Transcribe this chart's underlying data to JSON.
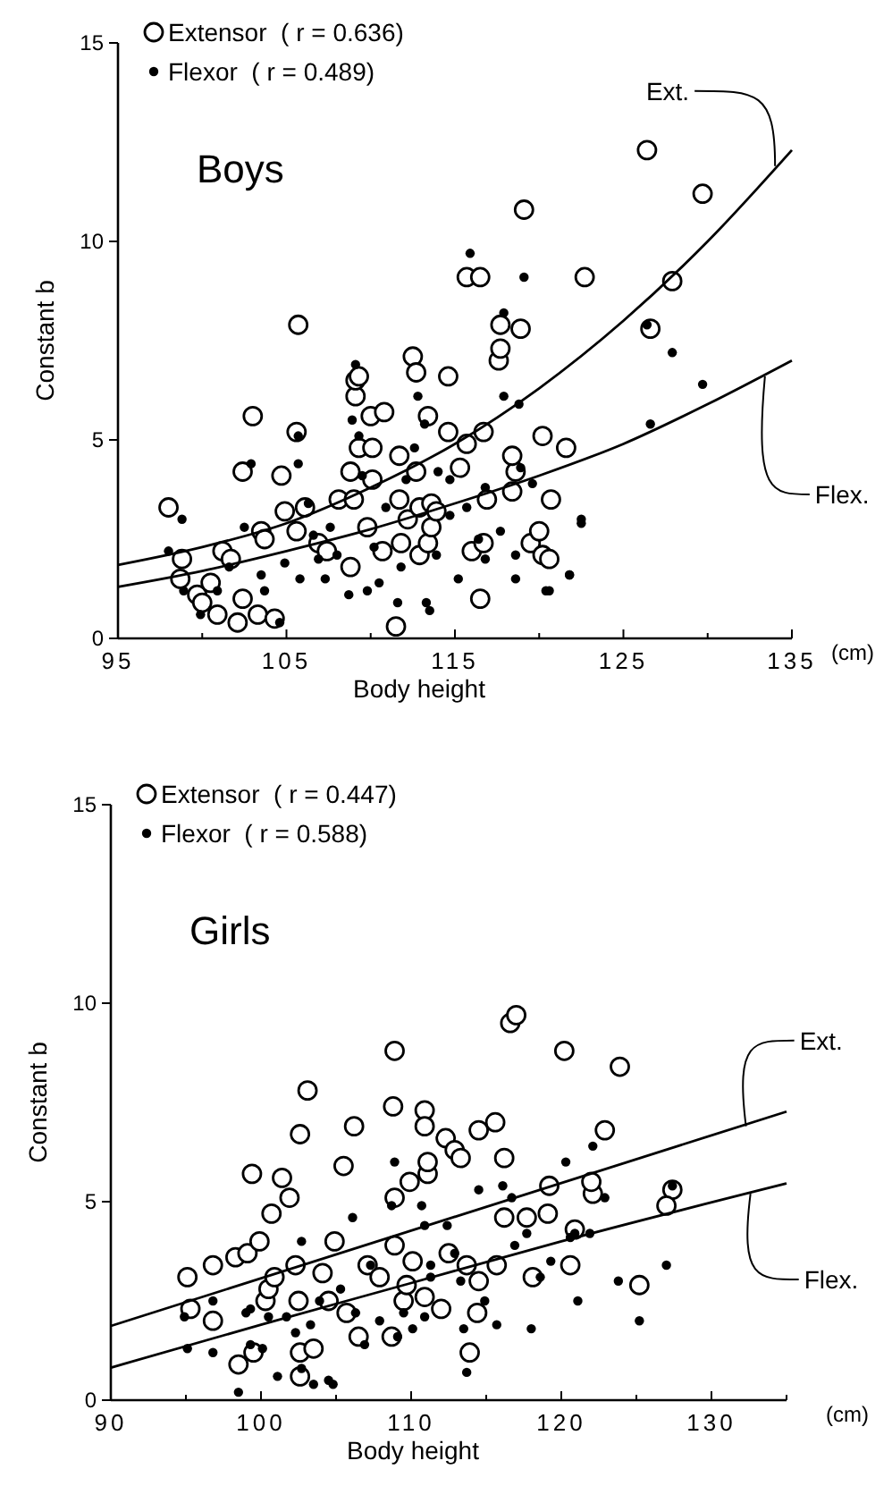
{
  "chart_data": [
    {
      "type": "scatter",
      "title": "Boys",
      "xlabel": "Body height",
      "ylabel": "Constant b",
      "xlim": [
        95,
        135
      ],
      "ylim": [
        0,
        15
      ],
      "xticks": [
        95,
        {
          "value": 100,
          "label": null
        },
        105,
        {
          "value": 110,
          "label": null
        },
        115,
        {
          "value": 120,
          "label": null
        },
        125,
        {
          "value": 130,
          "label": null
        },
        135
      ],
      "yticks": [
        0,
        5,
        10,
        15
      ],
      "legend": "top left",
      "grid": false,
      "annotations": [
        "(cm)",
        {
          "text": "Ext.",
          "x": 134,
          "y": 11.9
        },
        {
          "text": "Flex.",
          "x": 133.4,
          "y": 6.6
        }
      ],
      "series": [
        {
          "name": "Extensor  ( r = 0.636)",
          "type": "scatter",
          "marker": "circle",
          "color": "#ffffff",
          "x": [
            98,
            98.8,
            98.7,
            99.7,
            100,
            100.5,
            100.9,
            101.2,
            101.7,
            102.1,
            102.4,
            102.4,
            103,
            103.3,
            103.5,
            103.7,
            104.3,
            104.7,
            104.9,
            105.6,
            105.6,
            106.1,
            105.7,
            106.9,
            107.4,
            108.1,
            108.8,
            109,
            109.1,
            109.1,
            109.3,
            109.3,
            108.8,
            109.8,
            110,
            110.1,
            110.1,
            110.7,
            110.8,
            111.5,
            111.7,
            111.7,
            111.8,
            112.2,
            112.5,
            112.7,
            112.7,
            112.9,
            112.9,
            113.4,
            113.4,
            113.6,
            113.6,
            113.9,
            114.6,
            114.6,
            115.3,
            115.7,
            116,
            116.5,
            116.7,
            116.9,
            116.7,
            117.6,
            117.7,
            117.7,
            118.9,
            118.4,
            118.6,
            118.4,
            119.5,
            120,
            120.2,
            120.7,
            120.2,
            121.6,
            115.7,
            116.5,
            119.1,
            122.7,
            126.4,
            129.7,
            127.9,
            126.6,
            120.6
          ],
          "values": [
            3.3,
            2,
            1.5,
            1.1,
            0.9,
            1.4,
            0.6,
            2.2,
            2,
            0.4,
            1,
            4.2,
            5.6,
            0.6,
            2.7,
            2.5,
            0.5,
            4.1,
            3.2,
            5.2,
            2.7,
            3.3,
            7.9,
            2.4,
            2.2,
            3.5,
            4.2,
            3.5,
            6.1,
            6.5,
            4.8,
            6.6,
            1.8,
            2.8,
            5.6,
            4.8,
            4,
            2.2,
            5.7,
            0.3,
            3.5,
            4.6,
            2.4,
            3,
            7.1,
            6.7,
            4.2,
            3.3,
            2.1,
            5.6,
            2.4,
            3.4,
            2.8,
            3.2,
            6.6,
            5.2,
            4.3,
            4.9,
            2.2,
            1,
            2.4,
            3.5,
            5.2,
            7,
            7.3,
            7.9,
            7.8,
            3.7,
            4.2,
            4.6,
            2.4,
            2.7,
            2.1,
            3.5,
            5.1,
            4.8,
            9.1,
            9.1,
            10.8,
            9.1,
            12.3,
            11.2,
            9,
            7.8,
            2
          ]
        },
        {
          "name": "Flexor  ( r = 0.489)",
          "type": "scatter",
          "marker": "circle",
          "color": "#000000",
          "x": [
            98,
            98.8,
            98.9,
            99.9,
            100.9,
            101.6,
            102.5,
            102.9,
            103.5,
            103.7,
            104.6,
            104.9,
            105.7,
            105.7,
            105.8,
            106.3,
            106.6,
            106.9,
            107.3,
            107.6,
            108,
            108.7,
            108.9,
            109.1,
            109.3,
            109.5,
            109.8,
            110.2,
            110.5,
            110.9,
            111.6,
            111.8,
            112.1,
            112.6,
            112.8,
            113.2,
            113.3,
            113.5,
            113.9,
            114,
            114.7,
            114.7,
            115.2,
            115.7,
            116.4,
            116.8,
            116.8,
            117.7,
            117.9,
            118.6,
            118.6,
            118.8,
            118.9,
            119.6,
            120.4,
            121.8,
            122.5,
            115.9,
            119.1,
            117.9,
            126.4,
            127.9,
            129.7,
            126.6,
            122.5,
            121.8,
            120.6
          ],
          "values": [
            2.2,
            3,
            1.2,
            0.6,
            1.2,
            1.8,
            2.8,
            4.4,
            1.6,
            1.2,
            0.4,
            1.9,
            4.4,
            5.1,
            1.5,
            3.4,
            2.6,
            2,
            1.5,
            2.8,
            2.1,
            1.1,
            5.5,
            6.9,
            5.1,
            4.1,
            1.2,
            2.3,
            1.4,
            3.3,
            0.9,
            1.8,
            4,
            4.8,
            6.1,
            5.4,
            0.9,
            0.7,
            2.1,
            4.2,
            3.1,
            4,
            1.5,
            3.3,
            2.5,
            2,
            3.8,
            2.7,
            6.1,
            2.1,
            1.5,
            5.9,
            4.3,
            3.9,
            1.2,
            1.6,
            3,
            9.7,
            9.1,
            8.2,
            7.9,
            7.2,
            6.4,
            5.4,
            2.9,
            1.6,
            1.2
          ]
        },
        {
          "type": "line",
          "line_style": "solid",
          "marker": "none",
          "color": "#000000",
          "x": [
            95,
            100,
            105,
            110,
            115,
            120,
            125,
            130,
            135
          ],
          "values": [
            1.85,
            2.3,
            2.9,
            3.8,
            4.9,
            6.3,
            8,
            10,
            12.3
          ]
        },
        {
          "type": "line",
          "line_style": "solid",
          "marker": "none",
          "color": "#000000",
          "x": [
            95,
            100,
            105,
            110,
            115,
            120,
            125,
            130,
            135
          ],
          "values": [
            1.3,
            1.7,
            2.2,
            2.75,
            3.4,
            4.1,
            4.9,
            5.9,
            7
          ]
        }
      ]
    },
    {
      "type": "scatter",
      "title": "Girls",
      "xlabel": "Body height",
      "ylabel": "Constant b",
      "xlim": [
        90,
        135
      ],
      "ylim": [
        0,
        15
      ],
      "xticks": [
        90,
        {
          "value": 95,
          "label": null
        },
        100,
        {
          "value": 105,
          "label": null
        },
        110,
        {
          "value": 115,
          "label": null
        },
        120,
        {
          "value": 125,
          "label": null
        },
        130,
        {
          "value": 135,
          "label": null
        }
      ],
      "yticks": [
        0,
        5,
        10,
        15
      ],
      "legend": "top left",
      "grid": false,
      "annotations": [
        "(cm)",
        {
          "text": "Ext.",
          "x": 132.3,
          "y": 6.9
        },
        {
          "text": "Flex.",
          "x": 132.6,
          "y": 5.2
        }
      ],
      "series": [
        {
          "name": "Extensor  ( r = 0.447)",
          "type": "scatter",
          "marker": "circle",
          "color": "#ffffff",
          "x": [
            95.1,
            95.3,
            96.8,
            96.8,
            98.3,
            99.1,
            99.4,
            99.9,
            98.5,
            99.5,
            100.3,
            100.5,
            100.7,
            100.9,
            101.4,
            101.9,
            102.3,
            102.5,
            102.6,
            102.6,
            103.1,
            102.6,
            103.5,
            104.1,
            104.5,
            104.9,
            105.5,
            105.7,
            106.2,
            106.5,
            107.1,
            107.9,
            108.7,
            108.9,
            108.9,
            108.8,
            109.5,
            109.9,
            110.1,
            109.7,
            110.9,
            110.9,
            111.1,
            111.1,
            110.9,
            112,
            112.3,
            112.5,
            112.9,
            113.3,
            113.7,
            113.9,
            114.5,
            114.4,
            114.5,
            115.6,
            115.7,
            116.2,
            116.2,
            117.7,
            118.1,
            119.1,
            119.2,
            120.9,
            120.6,
            122.1,
            122.9,
            108.9,
            116.6,
            117,
            120.2,
            123.9,
            122,
            127.4,
            127,
            125.2
          ],
          "values": [
            3.1,
            2.3,
            3.4,
            2,
            3.6,
            3.7,
            5.7,
            4,
            0.9,
            1.2,
            2.5,
            2.8,
            4.7,
            3.1,
            5.6,
            5.1,
            3.4,
            2.5,
            1.2,
            6.7,
            7.8,
            0.6,
            1.3,
            3.2,
            2.5,
            4,
            5.9,
            2.2,
            6.9,
            1.6,
            3.4,
            3.1,
            1.6,
            3.9,
            5.1,
            7.4,
            2.5,
            5.5,
            3.5,
            2.9,
            7.3,
            6.9,
            5.7,
            6,
            2.6,
            2.3,
            6.6,
            3.7,
            6.3,
            6.1,
            3.4,
            1.2,
            3,
            2.2,
            6.8,
            7,
            3.4,
            6.1,
            4.6,
            4.6,
            3.1,
            4.7,
            5.4,
            4.3,
            3.4,
            5.2,
            6.8,
            8.8,
            9.5,
            9.7,
            8.8,
            8.4,
            5.5,
            5.3,
            4.9,
            2.9
          ]
        },
        {
          "name": "Flexor  ( r = 0.588)",
          "type": "scatter",
          "marker": "circle",
          "color": "#000000",
          "x": [
            94.9,
            95.1,
            96.8,
            96.8,
            98.5,
            99,
            99.3,
            99.3,
            100.1,
            100.5,
            101.1,
            101.7,
            102.3,
            102.7,
            102.7,
            103.3,
            103.5,
            103.9,
            104.5,
            104.8,
            105.3,
            106.1,
            106.3,
            106.9,
            107.3,
            107.9,
            108.7,
            108.9,
            109.1,
            109.5,
            110.1,
            110.7,
            110.9,
            110.9,
            111.3,
            111.3,
            112.4,
            112.9,
            113.3,
            113.5,
            113.7,
            114.5,
            114.9,
            115.7,
            116.1,
            116.7,
            116.9,
            117.7,
            118,
            119.3,
            120.3,
            120.9,
            121.1,
            122.1,
            122.9,
            127.4,
            121.9,
            120.6,
            118.6,
            127,
            123.8,
            125.2
          ],
          "values": [
            2.1,
            1.3,
            2.5,
            1.2,
            0.2,
            2.2,
            1.4,
            2.3,
            1.3,
            2.1,
            0.6,
            2.1,
            1.7,
            4,
            0.8,
            1.9,
            0.4,
            2.5,
            0.5,
            0.4,
            2.8,
            4.6,
            2.2,
            1.4,
            3.4,
            2,
            4.9,
            6,
            1.6,
            2.2,
            1.8,
            4.9,
            4.4,
            2.1,
            3.1,
            3.4,
            4.4,
            3.7,
            3,
            1.8,
            0.7,
            5.3,
            2.5,
            1.9,
            5.4,
            5.1,
            3.9,
            4.2,
            1.8,
            3.5,
            6,
            4.2,
            2.5,
            6.4,
            5.1,
            5.4,
            4.2,
            4.1,
            3.1,
            3.4,
            3,
            2
          ]
        },
        {
          "type": "line",
          "line_style": "solid",
          "marker": "none",
          "color": "#000000",
          "x": [
            90,
            135
          ],
          "values": [
            1.87,
            7.27
          ]
        },
        {
          "type": "line",
          "line_style": "solid",
          "marker": "none",
          "color": "#000000",
          "x": [
            90,
            100,
            110,
            120,
            135
          ],
          "values": [
            0.82,
            1.9,
            2.95,
            4,
            5.46
          ]
        }
      ]
    }
  ]
}
